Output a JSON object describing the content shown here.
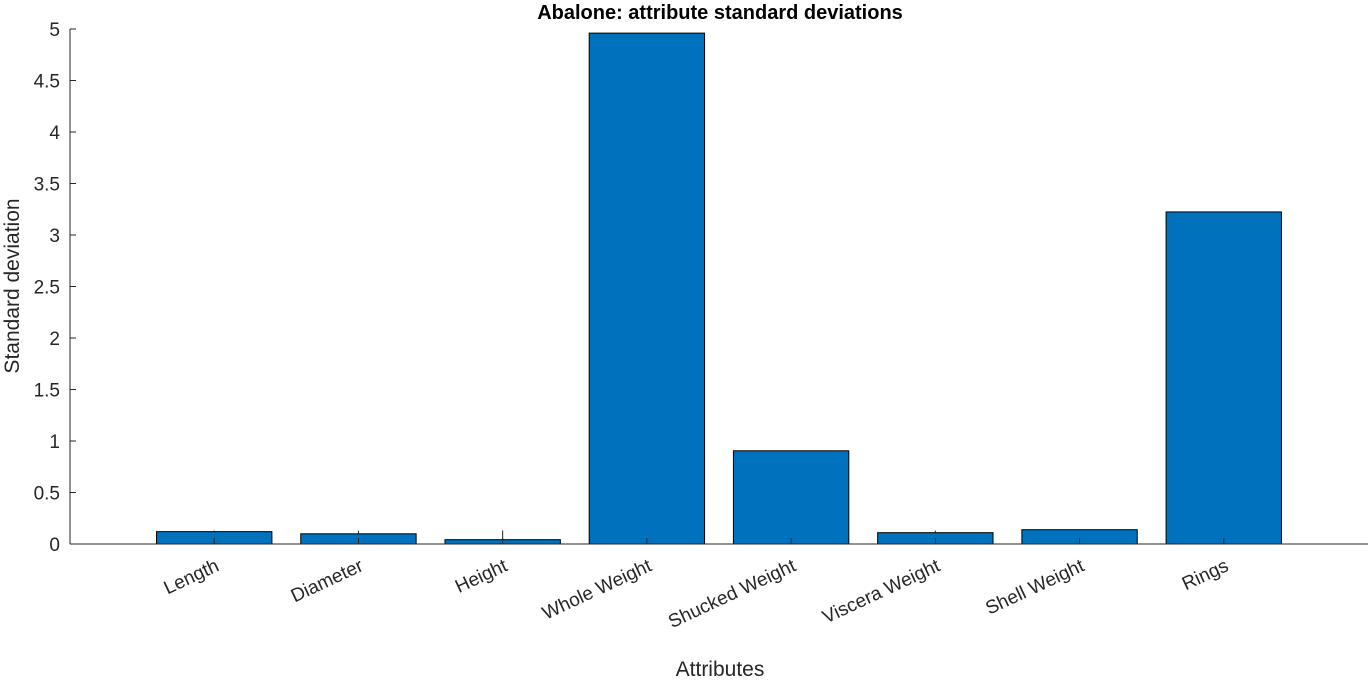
{
  "chart_data": {
    "type": "bar",
    "title": "Abalone: attribute standard deviations",
    "xlabel": "Attributes",
    "ylabel": "Standard deviation",
    "categories": [
      "Length",
      "Diameter",
      "Height",
      "Whole Weight",
      "Shucked Weight",
      "Viscera Weight",
      "Shell Weight",
      "Rings"
    ],
    "values": [
      0.12,
      0.099,
      0.042,
      4.96,
      0.905,
      0.11,
      0.139,
      3.224
    ],
    "error_bars": [
      0.01,
      0.03,
      0.09,
      0.0,
      0.0,
      0.02,
      0.0,
      0.0
    ],
    "yticks": [
      "0",
      "0.5",
      "1",
      "1.5",
      "2",
      "2.5",
      "3",
      "3.5",
      "4",
      "4.5",
      "5"
    ],
    "ylim": [
      0,
      5
    ],
    "xlim": [
      0,
      9
    ],
    "grid": false,
    "bar_color": "#0072BD"
  }
}
